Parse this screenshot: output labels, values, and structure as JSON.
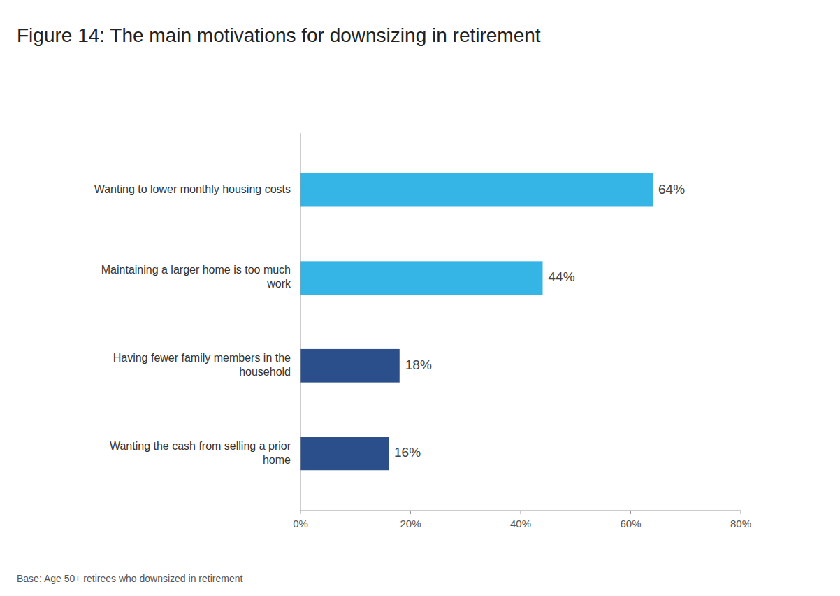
{
  "chart_data": {
    "type": "bar",
    "orientation": "horizontal",
    "title": "Figure 14: The main motivations for downsizing in retirement",
    "categories": [
      "Wanting the cash from selling a prior\nhome",
      "Having fewer family members in the\nhousehold",
      "Maintaining a larger home is too much\nwork",
      "Wanting to lower monthly housing costs"
    ],
    "values": [
      16,
      18,
      44,
      64
    ],
    "value_labels": [
      "16%",
      "18%",
      "44%",
      "64%"
    ],
    "data_labels": true,
    "colors": [
      "#2b4f8a",
      "#2b4f8a",
      "#35b5e5",
      "#35b5e5"
    ],
    "xlim": [
      0,
      80
    ],
    "xticks": [
      {
        "value": 0,
        "label": "0%"
      },
      {
        "value": 20,
        "label": "20%"
      },
      {
        "value": 40,
        "label": "40%"
      },
      {
        "value": 60,
        "label": "60%"
      },
      {
        "value": 80,
        "label": "80%"
      }
    ],
    "grid": false,
    "annotations": [
      "Base: Age 50+ retirees who downsized in retirement"
    ]
  }
}
